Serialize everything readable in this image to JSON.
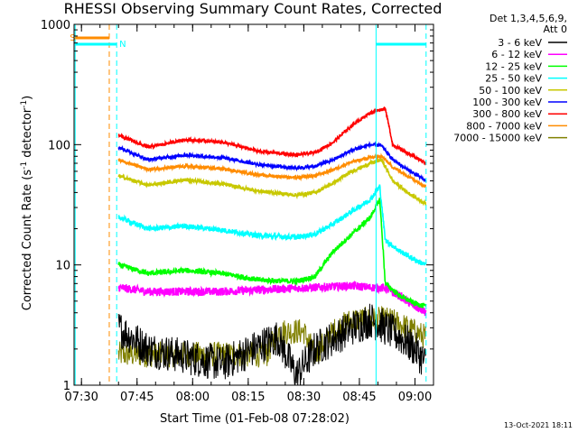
{
  "chart_data": {
    "type": "line",
    "title": "RHESSI Observing Summary Count Rates, Corrected",
    "xlabel": "Start Time (01-Feb-08 07:28:02)",
    "ylabel_main": "Corrected Count Rate (s",
    "ylabel_sup1": "-1",
    "ylabel_mid": " detector",
    "ylabel_sup2": "-1",
    "ylabel_end": ")",
    "footer": "13-Oct-2021 18:11",
    "detectors_line1": "Det 1,3,4,5,6,9,",
    "detectors_line2": "Att 0",
    "y_scale": "log",
    "ylim": [
      1,
      1000
    ],
    "xlim_minutes": [
      0,
      97
    ],
    "x_ticks": [
      {
        "label": "07:30",
        "min": 2
      },
      {
        "label": "07:45",
        "min": 17
      },
      {
        "label": "08:00",
        "min": 32
      },
      {
        "label": "08:15",
        "min": 47
      },
      {
        "label": "08:30",
        "min": 62
      },
      {
        "label": "08:45",
        "min": 77
      },
      {
        "label": "09:00",
        "min": 92
      }
    ],
    "y_ticks": [
      {
        "label": "1",
        "value": 1
      },
      {
        "label": "10",
        "value": 10
      },
      {
        "label": "100",
        "value": 100
      },
      {
        "label": "1000",
        "value": 1000
      }
    ],
    "flag_labels": {
      "s": "S",
      "n": "N"
    },
    "event_lines": [
      {
        "min": 0.3,
        "color": "#00ffff",
        "style": "solid"
      },
      {
        "min": 9.5,
        "color": "#ff8c00",
        "style": "dashed"
      },
      {
        "min": 11.5,
        "color": "#00ffff",
        "style": "dashed"
      },
      {
        "min": 81.5,
        "color": "#00ffff",
        "style": "solid"
      },
      {
        "min": 95.0,
        "color": "#00ffff",
        "style": "dashed"
      }
    ],
    "series": [
      {
        "name": "3 - 6 keV",
        "color": "#000000",
        "x": [
          12,
          20,
          40,
          55,
          60,
          65,
          75,
          80,
          84,
          88,
          92,
          95
        ],
        "y": [
          3,
          2,
          1.5,
          2.5,
          1.2,
          2,
          3,
          3.5,
          3,
          2.5,
          2,
          1.5
        ]
      },
      {
        "name": "6 - 12 keV",
        "color": "#ff00ff",
        "x": [
          12,
          20,
          40,
          55,
          65,
          75,
          80,
          84,
          88,
          92,
          95
        ],
        "y": [
          6.5,
          6.0,
          6.0,
          6.3,
          6.5,
          6.7,
          6.5,
          6.4,
          5.5,
          4.5,
          4.0
        ]
      },
      {
        "name": "12 - 25 keV",
        "color": "#00ff00",
        "x": [
          12,
          20,
          30,
          40,
          50,
          60,
          65,
          70,
          75,
          80,
          82.5,
          84,
          88,
          92,
          95
        ],
        "y": [
          10,
          8.5,
          9,
          8.5,
          7.5,
          7.3,
          8,
          13,
          18,
          25,
          35,
          7,
          5.5,
          4.8,
          4.5
        ]
      },
      {
        "name": "25 - 50 keV",
        "color": "#00ffff",
        "x": [
          12,
          20,
          30,
          40,
          50,
          60,
          65,
          70,
          75,
          80,
          82.5,
          84,
          88,
          92,
          95
        ],
        "y": [
          25,
          20,
          21,
          19.5,
          17.5,
          17,
          18,
          22,
          28,
          35,
          45,
          16,
          13,
          11,
          10
        ]
      },
      {
        "name": "50 - 100 keV",
        "color": "#c8c800",
        "x": [
          12,
          20,
          30,
          40,
          50,
          60,
          65,
          70,
          75,
          80,
          83,
          86,
          90,
          95
        ],
        "y": [
          55,
          46,
          51,
          47,
          41,
          38,
          40,
          48,
          60,
          70,
          75,
          50,
          40,
          32
        ]
      },
      {
        "name": "100 - 300 keV",
        "color": "#0000ff",
        "x": [
          12,
          20,
          30,
          40,
          50,
          60,
          65,
          70,
          75,
          80,
          83,
          86,
          90,
          95
        ],
        "y": [
          95,
          75,
          82,
          78,
          68,
          64,
          66,
          75,
          90,
          100,
          98,
          75,
          62,
          50
        ]
      },
      {
        "name": "300 - 800 keV",
        "color": "#ff0000",
        "x": [
          12,
          20,
          30,
          40,
          50,
          60,
          65,
          70,
          75,
          80,
          84,
          86,
          90,
          95
        ],
        "y": [
          120,
          95,
          110,
          105,
          88,
          82,
          86,
          105,
          145,
          185,
          200,
          100,
          85,
          70
        ]
      },
      {
        "name": "800 - 7000 keV",
        "color": "#ff8c00",
        "x": [
          12,
          20,
          30,
          40,
          50,
          60,
          65,
          70,
          75,
          80,
          83,
          86,
          90,
          95
        ],
        "y": [
          75,
          62,
          66,
          63,
          56,
          53,
          55,
          62,
          72,
          78,
          80,
          65,
          55,
          45
        ]
      },
      {
        "name": "7000 - 15000 keV",
        "color": "#808000",
        "x": [
          12,
          20,
          40,
          52,
          55,
          62,
          65,
          70,
          75,
          80,
          85,
          90,
          95
        ],
        "y": [
          1.8,
          1.8,
          1.8,
          1.8,
          2.8,
          2.8,
          1.8,
          2.8,
          3.5,
          3.5,
          3.5,
          3.0,
          2.5
        ]
      }
    ],
    "legend_placement": "right"
  }
}
